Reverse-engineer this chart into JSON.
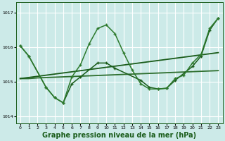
{
  "background_color": "#cceae8",
  "grid_color": "#ffffff",
  "dark_green": "#1a5c1a",
  "xlabel": "Graphe pression niveau de la mer (hPa)",
  "xlabel_fontsize": 7,
  "ylim": [
    1013.8,
    1017.3
  ],
  "xlim": [
    -0.5,
    23.5
  ],
  "yticks": [
    1014,
    1015,
    1016,
    1017
  ],
  "xticks": [
    0,
    1,
    2,
    3,
    4,
    5,
    6,
    7,
    8,
    9,
    10,
    11,
    12,
    13,
    14,
    15,
    16,
    17,
    18,
    19,
    20,
    21,
    22,
    23
  ],
  "series": [
    {
      "x": [
        0,
        1,
        2,
        3,
        4,
        5,
        6,
        7,
        8,
        9,
        10,
        11,
        12,
        13,
        14,
        15,
        16,
        17,
        18,
        19,
        20,
        21,
        22,
        23
      ],
      "y": [
        1015.1,
        1015.1,
        1015.12,
        1015.13,
        1015.14,
        1015.15,
        1015.16,
        1015.17,
        1015.18,
        1015.19,
        1015.2,
        1015.21,
        1015.22,
        1015.23,
        1015.24,
        1015.25,
        1015.26,
        1015.27,
        1015.28,
        1015.29,
        1015.3,
        1015.31,
        1015.32,
        1015.33
      ],
      "color": "#2d6e2d",
      "lw": 1.3,
      "marker": null
    },
    {
      "x": [
        0,
        23
      ],
      "y": [
        1015.1,
        1015.85
      ],
      "color": "#1a5c1a",
      "lw": 1.3,
      "marker": null
    },
    {
      "x": [
        0,
        1,
        3,
        4,
        5,
        6,
        7,
        9,
        10,
        11,
        14,
        15,
        16,
        17,
        18,
        20,
        21,
        22,
        23
      ],
      "y": [
        1016.05,
        1015.75,
        1014.85,
        1014.55,
        1014.4,
        1014.95,
        1015.15,
        1015.55,
        1015.55,
        1015.4,
        1015.05,
        1014.85,
        1014.8,
        1014.82,
        1015.05,
        1015.45,
        1015.75,
        1016.5,
        1016.85
      ],
      "color": "#1a5c1a",
      "lw": 1.1,
      "marker": "+"
    },
    {
      "x": [
        0,
        1,
        3,
        4,
        5,
        6,
        7,
        8,
        9,
        10,
        11,
        12,
        13,
        14,
        15,
        16,
        17,
        18,
        19,
        20,
        21,
        22,
        23
      ],
      "y": [
        1016.05,
        1015.75,
        1014.85,
        1014.55,
        1014.4,
        1015.15,
        1015.5,
        1016.1,
        1016.55,
        1016.65,
        1016.4,
        1015.85,
        1015.35,
        1014.95,
        1014.8,
        1014.8,
        1014.82,
        1015.1,
        1015.2,
        1015.55,
        1015.8,
        1016.55,
        1016.85
      ],
      "color": "#2d7a2d",
      "lw": 1.1,
      "marker": "+"
    }
  ]
}
